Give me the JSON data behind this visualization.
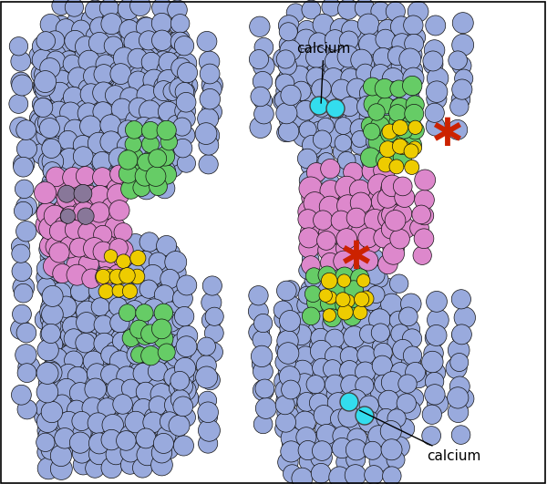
{
  "bg_color": "#ffffff",
  "main_blue": "#99aadd",
  "main_blue2": "#aabbee",
  "main_blue3": "#7788bb",
  "green_color": "#66cc66",
  "pink_color": "#dd88cc",
  "yellow_color": "#eecc00",
  "purple_color": "#887799",
  "cyan_color": "#33ddee",
  "red_color": "#cc2200",
  "label_calcium_top": "calcium",
  "label_calcium_bottom": "calcium",
  "figsize": [
    6.0,
    5.31
  ],
  "dpi": 100
}
